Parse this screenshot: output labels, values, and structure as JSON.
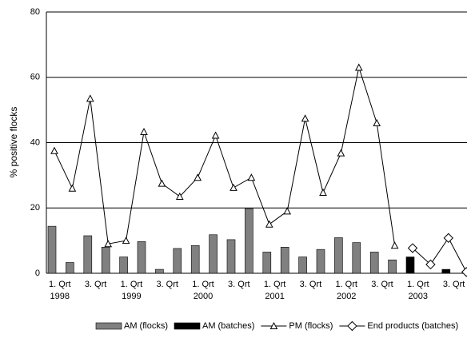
{
  "chart_data": {
    "type": "bar_line",
    "y_label": "% positive flocks",
    "categories": [
      "1. Qrt",
      null,
      "3. Qrt",
      null,
      "1. Qrt",
      null,
      "3. Qrt",
      null,
      "1. Qrt",
      null,
      "3. Qrt",
      null,
      "1. Qrt",
      null,
      "3. Qrt",
      null,
      "1. Qrt",
      null,
      "3. Qrt",
      null,
      "1. Qrt",
      null,
      "3. Qrt",
      null
    ],
    "category_years": [
      "1998",
      null,
      null,
      null,
      "1999",
      null,
      null,
      null,
      "2000",
      null,
      null,
      null,
      "2001",
      null,
      null,
      null,
      "2002",
      null,
      null,
      null,
      "2003",
      null,
      null,
      null
    ],
    "ylim": [
      0,
      80
    ],
    "yticks": [
      0,
      20,
      40,
      60,
      80
    ],
    "grid": true,
    "series": [
      {
        "name": "AM (flocks)",
        "kind": "bar",
        "color": "#808080",
        "values": [
          14.4,
          3.3,
          11.5,
          8,
          5,
          9.7,
          1.2,
          7.6,
          8.5,
          11.8,
          10.3,
          19.8,
          6.5,
          8,
          5,
          7.3,
          10.9,
          9.4,
          6.5,
          4.1,
          null,
          null,
          null,
          null
        ]
      },
      {
        "name": "AM (batches)",
        "kind": "bar",
        "color": "#000000",
        "values": [
          null,
          null,
          null,
          null,
          null,
          null,
          null,
          null,
          null,
          null,
          null,
          null,
          null,
          null,
          null,
          null,
          null,
          null,
          null,
          null,
          5,
          null,
          1.2,
          null
        ]
      },
      {
        "name": "PM (flocks)",
        "kind": "line",
        "marker": "triangle",
        "color": "#000000",
        "values": [
          37.5,
          26,
          53.5,
          9,
          10,
          43.3,
          27.5,
          23.5,
          29.3,
          42.2,
          26.2,
          29.3,
          15,
          19,
          47.4,
          24.7,
          36.8,
          63,
          46,
          8.5,
          null,
          null,
          null,
          null
        ]
      },
      {
        "name": "End products (batches)",
        "kind": "line",
        "marker": "diamond",
        "color": "#000000",
        "values": [
          null,
          null,
          null,
          null,
          null,
          null,
          null,
          null,
          null,
          null,
          null,
          null,
          null,
          null,
          null,
          null,
          null,
          null,
          null,
          null,
          7.7,
          2.7,
          10.8,
          0.4
        ]
      }
    ]
  }
}
